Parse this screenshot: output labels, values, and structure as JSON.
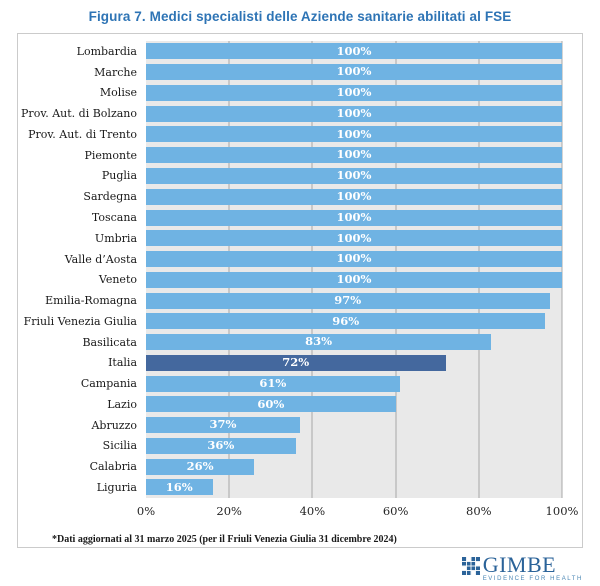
{
  "title": "Figura 7. Medici specialisti delle Aziende sanitarie abilitati al FSE",
  "footnote": "*Dati aggiornati al 31 marzo 2025 (per il Friuli Venezia Giulia 31 dicembre 2024)",
  "logo": {
    "name": "GIMBE",
    "tagline": "EVIDENCE FOR HEALTH"
  },
  "colors": {
    "title": "#2E74B5",
    "bar": "#6FB3E3",
    "bar_highlight": "#44689E",
    "plot_bg": "#E9E9E9",
    "gridline": "#A8A8A8",
    "box_border": "#CBCBCB",
    "value_text": "#FFFFFF",
    "logo_blue": "#2B6399"
  },
  "chart_data": {
    "type": "bar",
    "orientation": "horizontal",
    "unit": "%",
    "title": "Figura 7. Medici specialisti delle Aziende sanitarie abilitati al FSE",
    "categories": [
      "Lombardia",
      "Marche",
      "Molise",
      "Prov. Aut. di Bolzano",
      "Prov. Aut. di Trento",
      "Piemonte",
      "Puglia",
      "Sardegna",
      "Toscana",
      "Umbria",
      "Valle d’Aosta",
      "Veneto",
      "Emilia-Romagna",
      "Friuli Venezia Giulia",
      "Basilicata",
      "Italia",
      "Campania",
      "Lazio",
      "Abruzzo",
      "Sicilia",
      "Calabria",
      "Liguria"
    ],
    "values": [
      100,
      100,
      100,
      100,
      100,
      100,
      100,
      100,
      100,
      100,
      100,
      100,
      97,
      96,
      83,
      72,
      61,
      60,
      37,
      36,
      26,
      16
    ],
    "highlight_category": "Italia",
    "xlim": [
      0,
      100
    ],
    "tick_values": [
      0,
      20,
      40,
      60,
      80,
      100
    ],
    "x_ticks": [
      "0%",
      "20%",
      "40%",
      "60%",
      "80%",
      "100%"
    ],
    "grid": true,
    "legend": "none"
  }
}
